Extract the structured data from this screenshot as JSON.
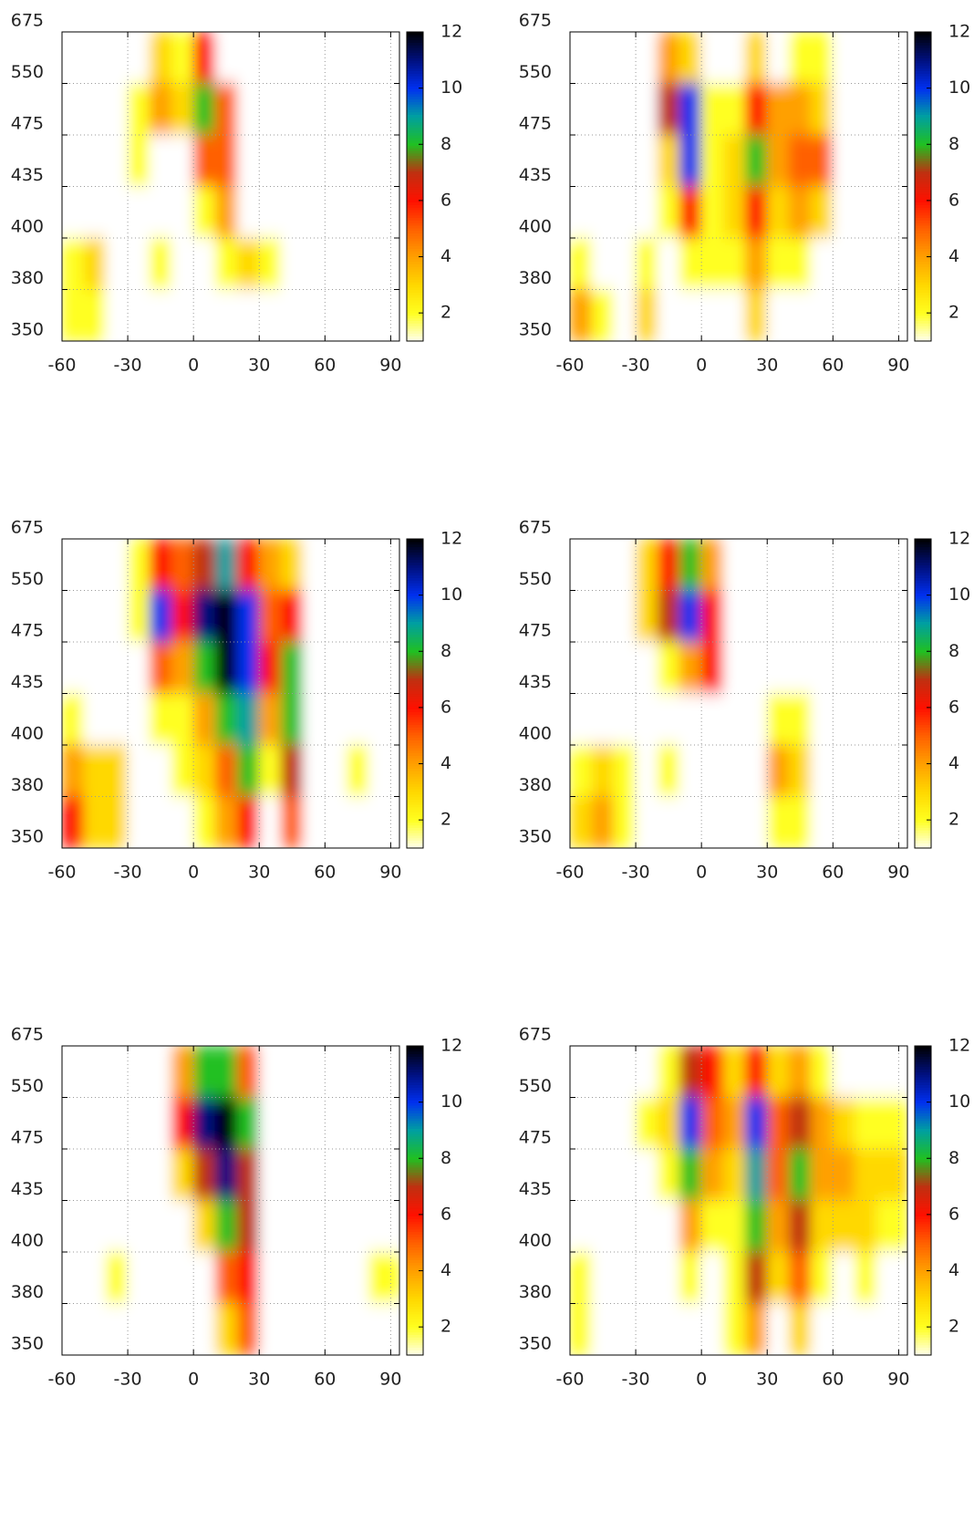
{
  "chart_data": [
    {
      "type": "heatmap",
      "x": [
        -55,
        -45,
        -35,
        -25,
        -15,
        -5,
        5,
        15,
        25,
        35,
        45,
        55,
        65,
        75,
        85
      ],
      "y": [
        5.5,
        4.5,
        3.5,
        2.5,
        1.5,
        0.5
      ],
      "z": [
        [
          0,
          0,
          0,
          1,
          3,
          2,
          6,
          1,
          0,
          0,
          0,
          0,
          0,
          0,
          0
        ],
        [
          0,
          0,
          0,
          2,
          4,
          3,
          8,
          5,
          0,
          0,
          0,
          0,
          0,
          0,
          0
        ],
        [
          0,
          0,
          0,
          2,
          1,
          1,
          5,
          5,
          0,
          0,
          0,
          0,
          0,
          0,
          0
        ],
        [
          0,
          0,
          0,
          0,
          0,
          1,
          2,
          4,
          1,
          0,
          0,
          0,
          0,
          0,
          0
        ],
        [
          2,
          3,
          0,
          0,
          2,
          1,
          1,
          2,
          3,
          2,
          0,
          0,
          0,
          0,
          0
        ],
        [
          2,
          2,
          0,
          0,
          1,
          0,
          0,
          1,
          1,
          0,
          0,
          0,
          0,
          0,
          0
        ]
      ],
      "xlim": [
        -60,
        94
      ],
      "xticks": [
        -60,
        -30,
        0,
        30,
        60,
        90
      ],
      "ylim": [
        0,
        6
      ],
      "yticks": [
        {
          "value": 0,
          "label": "350"
        },
        {
          "value": 1,
          "label": "380"
        },
        {
          "value": 2,
          "label": "400"
        },
        {
          "value": 3,
          "label": "435"
        },
        {
          "value": 4,
          "label": "475"
        },
        {
          "value": 5,
          "label": "550"
        },
        {
          "value": 6,
          "label": "675"
        }
      ],
      "zlim": [
        1,
        12
      ],
      "zticks": [
        2,
        4,
        6,
        8,
        10,
        12
      ],
      "colorscale": [
        "#fffff0",
        "#ffff20",
        "#ffd800",
        "#ffa000",
        "#ff6000",
        "#ff1000",
        "#c03010",
        "#20c020",
        "#00a0a0",
        "#0030f0",
        "#001080",
        "#000000"
      ],
      "grid": true
    },
    {
      "type": "heatmap",
      "x": [
        -55,
        -45,
        -35,
        -25,
        -15,
        -5,
        5,
        15,
        25,
        35,
        45,
        55,
        65,
        75,
        85
      ],
      "y": [
        5.5,
        4.5,
        3.5,
        2.5,
        1.5,
        0.5
      ],
      "z": [
        [
          0,
          0,
          0,
          0,
          4,
          3,
          1,
          1,
          3,
          1,
          2,
          2,
          0,
          0,
          0
        ],
        [
          0,
          0,
          0,
          0,
          7,
          10,
          2,
          2,
          6,
          4,
          4,
          3,
          1,
          0,
          0
        ],
        [
          0,
          0,
          0,
          0,
          3,
          10,
          2,
          3,
          8,
          4,
          5,
          5,
          1,
          0,
          0
        ],
        [
          0,
          0,
          0,
          1,
          2,
          6,
          2,
          3,
          6,
          3,
          4,
          3,
          1,
          0,
          1
        ],
        [
          2,
          1,
          0,
          2,
          1,
          2,
          2,
          2,
          4,
          2,
          2,
          1,
          0,
          1,
          1
        ],
        [
          4,
          2,
          0,
          3,
          1,
          0,
          0,
          1,
          3,
          0,
          0,
          0,
          0,
          0,
          0
        ]
      ],
      "xlim": [
        -60,
        94
      ],
      "xticks": [
        -60,
        -30,
        0,
        30,
        60,
        90
      ],
      "ylim": [
        0,
        6
      ],
      "yticks": [
        {
          "value": 0,
          "label": "350"
        },
        {
          "value": 1,
          "label": "380"
        },
        {
          "value": 2,
          "label": "400"
        },
        {
          "value": 3,
          "label": "435"
        },
        {
          "value": 4,
          "label": "475"
        },
        {
          "value": 5,
          "label": "550"
        },
        {
          "value": 6,
          "label": "675"
        }
      ],
      "zlim": [
        1,
        12
      ],
      "zticks": [
        2,
        4,
        6,
        8,
        10,
        12
      ],
      "colorscale": [
        "#fffff0",
        "#ffff20",
        "#ffd800",
        "#ffa000",
        "#ff6000",
        "#ff1000",
        "#c03010",
        "#20c020",
        "#00a0a0",
        "#0030f0",
        "#001080",
        "#000000"
      ],
      "grid": true
    },
    {
      "type": "heatmap",
      "x": [
        -55,
        -45,
        -35,
        -25,
        -15,
        -5,
        5,
        15,
        25,
        35,
        45,
        55,
        65,
        75,
        85
      ],
      "y": [
        5.5,
        4.5,
        3.5,
        2.5,
        1.5,
        0.5
      ],
      "z": [
        [
          0,
          0,
          0,
          2,
          6,
          5,
          7,
          9,
          6,
          4,
          3,
          0,
          0,
          0,
          0
        ],
        [
          0,
          0,
          0,
          2,
          10,
          6,
          11,
          12,
          10,
          5,
          6,
          0,
          0,
          0,
          0
        ],
        [
          0,
          0,
          0,
          1,
          5,
          4,
          8,
          12,
          10,
          6,
          8,
          0,
          0,
          0,
          0
        ],
        [
          2,
          1,
          1,
          1,
          2,
          2,
          4,
          8,
          9,
          4,
          8,
          0,
          0,
          0,
          0
        ],
        [
          4,
          3,
          3,
          1,
          1,
          2,
          3,
          5,
          8,
          2,
          7,
          1,
          1,
          2,
          0
        ],
        [
          6,
          3,
          3,
          0,
          0,
          1,
          2,
          4,
          6,
          1,
          5,
          0,
          0,
          0,
          0
        ]
      ],
      "xlim": [
        -60,
        94
      ],
      "xticks": [
        -60,
        -30,
        0,
        30,
        60,
        90
      ],
      "ylim": [
        0,
        6
      ],
      "yticks": [
        {
          "value": 0,
          "label": "350"
        },
        {
          "value": 1,
          "label": "380"
        },
        {
          "value": 2,
          "label": "400"
        },
        {
          "value": 3,
          "label": "435"
        },
        {
          "value": 4,
          "label": "475"
        },
        {
          "value": 5,
          "label": "550"
        },
        {
          "value": 6,
          "label": "675"
        }
      ],
      "zlim": [
        1,
        12
      ],
      "zticks": [
        2,
        4,
        6,
        8,
        10,
        12
      ],
      "colorscale": [
        "#fffff0",
        "#ffff20",
        "#ffd800",
        "#ffa000",
        "#ff6000",
        "#ff1000",
        "#c03010",
        "#20c020",
        "#00a0a0",
        "#0030f0",
        "#001080",
        "#000000"
      ],
      "grid": true
    },
    {
      "type": "heatmap",
      "x": [
        -55,
        -45,
        -35,
        -25,
        -15,
        -5,
        5,
        15,
        25,
        35,
        45,
        55,
        65,
        75,
        85
      ],
      "y": [
        5.5,
        4.5,
        3.5,
        2.5,
        1.5,
        0.5
      ],
      "z": [
        [
          0,
          0,
          0,
          3,
          6,
          8,
          4,
          0,
          0,
          0,
          0,
          0,
          0,
          0,
          0
        ],
        [
          0,
          0,
          0,
          3,
          7,
          10,
          6,
          0,
          0,
          0,
          0,
          0,
          0,
          0,
          0
        ],
        [
          0,
          0,
          0,
          1,
          2,
          4,
          6,
          1,
          0,
          0,
          0,
          0,
          0,
          0,
          0
        ],
        [
          0,
          0,
          0,
          0,
          0,
          1,
          1,
          1,
          1,
          2,
          2,
          0,
          0,
          0,
          0
        ],
        [
          2,
          3,
          2,
          0,
          2,
          0,
          0,
          0,
          1,
          4,
          3,
          1,
          1,
          0,
          0
        ],
        [
          3,
          4,
          2,
          1,
          0,
          0,
          0,
          0,
          0,
          2,
          2,
          0,
          0,
          0,
          0
        ]
      ],
      "xlim": [
        -60,
        94
      ],
      "xticks": [
        -60,
        -30,
        0,
        30,
        60,
        90
      ],
      "ylim": [
        0,
        6
      ],
      "yticks": [
        {
          "value": 0,
          "label": "350"
        },
        {
          "value": 1,
          "label": "380"
        },
        {
          "value": 2,
          "label": "400"
        },
        {
          "value": 3,
          "label": "435"
        },
        {
          "value": 4,
          "label": "475"
        },
        {
          "value": 5,
          "label": "550"
        },
        {
          "value": 6,
          "label": "675"
        }
      ],
      "zlim": [
        1,
        12
      ],
      "zticks": [
        2,
        4,
        6,
        8,
        10,
        12
      ],
      "colorscale": [
        "#fffff0",
        "#ffff20",
        "#ffd800",
        "#ffa000",
        "#ff6000",
        "#ff1000",
        "#c03010",
        "#20c020",
        "#00a0a0",
        "#0030f0",
        "#001080",
        "#000000"
      ],
      "grid": true
    },
    {
      "type": "heatmap",
      "x": [
        -55,
        -45,
        -35,
        -25,
        -15,
        -5,
        5,
        15,
        25,
        35,
        45,
        55,
        65,
        75,
        85
      ],
      "y": [
        5.5,
        4.5,
        3.5,
        2.5,
        1.5,
        0.5
      ],
      "z": [
        [
          0,
          0,
          0,
          0,
          0,
          4,
          8,
          8,
          5,
          0,
          0,
          0,
          0,
          0,
          0
        ],
        [
          0,
          0,
          0,
          0,
          0,
          6,
          11,
          12,
          8,
          0,
          0,
          0,
          0,
          0,
          0
        ],
        [
          0,
          0,
          0,
          0,
          0,
          3,
          7,
          11,
          7,
          1,
          0,
          0,
          0,
          0,
          0
        ],
        [
          0,
          0,
          0,
          0,
          0,
          1,
          3,
          8,
          7,
          0,
          0,
          0,
          0,
          0,
          0
        ],
        [
          0,
          1,
          2,
          1,
          1,
          0,
          1,
          5,
          6,
          0,
          0,
          0,
          0,
          0,
          2
        ],
        [
          0,
          1,
          1,
          0,
          0,
          0,
          0,
          3,
          5,
          0,
          0,
          0,
          0,
          0,
          0
        ]
      ],
      "xlim": [
        -60,
        94
      ],
      "xticks": [
        -60,
        -30,
        0,
        30,
        60,
        90
      ],
      "ylim": [
        0,
        6
      ],
      "yticks": [
        {
          "value": 0,
          "label": "350"
        },
        {
          "value": 1,
          "label": "380"
        },
        {
          "value": 2,
          "label": "400"
        },
        {
          "value": 3,
          "label": "435"
        },
        {
          "value": 4,
          "label": "475"
        },
        {
          "value": 5,
          "label": "550"
        },
        {
          "value": 6,
          "label": "675"
        }
      ],
      "zlim": [
        1,
        12
      ],
      "zticks": [
        2,
        4,
        6,
        8,
        10,
        12
      ],
      "colorscale": [
        "#fffff0",
        "#ffff20",
        "#ffd800",
        "#ffa000",
        "#ff6000",
        "#ff1000",
        "#c03010",
        "#20c020",
        "#00a0a0",
        "#0030f0",
        "#001080",
        "#000000"
      ],
      "grid": true
    },
    {
      "type": "heatmap",
      "x": [
        -55,
        -45,
        -35,
        -25,
        -15,
        -5,
        5,
        15,
        25,
        35,
        45,
        55,
        65,
        75,
        85
      ],
      "y": [
        5.5,
        4.5,
        3.5,
        2.5,
        1.5,
        0.5
      ],
      "z": [
        [
          0,
          0,
          0,
          1,
          2,
          7,
          6,
          3,
          6,
          3,
          4,
          2,
          1,
          0,
          0
        ],
        [
          0,
          0,
          0,
          2,
          3,
          10,
          5,
          4,
          10,
          5,
          7,
          4,
          3,
          2,
          2
        ],
        [
          0,
          0,
          0,
          1,
          2,
          8,
          4,
          3,
          9,
          5,
          8,
          4,
          4,
          3,
          3
        ],
        [
          0,
          0,
          0,
          0,
          1,
          4,
          2,
          2,
          8,
          4,
          7,
          3,
          3,
          3,
          2
        ],
        [
          2,
          1,
          0,
          1,
          0,
          2,
          1,
          2,
          7,
          3,
          5,
          2,
          1,
          2,
          0
        ],
        [
          2,
          1,
          0,
          0,
          0,
          0,
          1,
          2,
          4,
          1,
          3,
          1,
          1,
          1,
          0
        ]
      ],
      "xlim": [
        -60,
        94
      ],
      "xticks": [
        -60,
        -30,
        0,
        30,
        60,
        90
      ],
      "ylim": [
        0,
        6
      ],
      "yticks": [
        {
          "value": 0,
          "label": "350"
        },
        {
          "value": 1,
          "label": "380"
        },
        {
          "value": 2,
          "label": "400"
        },
        {
          "value": 3,
          "label": "435"
        },
        {
          "value": 4,
          "label": "475"
        },
        {
          "value": 5,
          "label": "550"
        },
        {
          "value": 6,
          "label": "675"
        }
      ],
      "zlim": [
        1,
        12
      ],
      "zticks": [
        2,
        4,
        6,
        8,
        10,
        12
      ],
      "colorscale": [
        "#fffff0",
        "#ffff20",
        "#ffd800",
        "#ffa000",
        "#ff6000",
        "#ff1000",
        "#c03010",
        "#20c020",
        "#00a0a0",
        "#0030f0",
        "#001080",
        "#000000"
      ],
      "grid": true
    }
  ]
}
